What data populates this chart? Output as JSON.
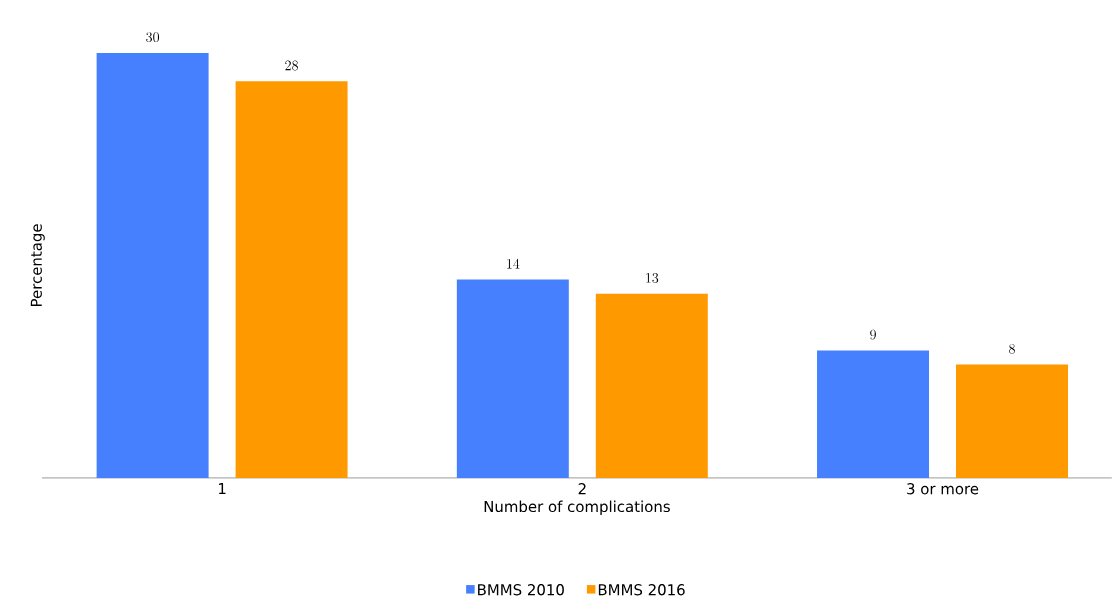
{
  "chart_data": {
    "type": "bar",
    "xlabel": "Number of complications",
    "ylabel": "Percentage",
    "categories": [
      "1",
      "2",
      "3 or more"
    ],
    "series": [
      {
        "name": "BMMS 2010",
        "color": "#4680ff",
        "values": [
          30,
          14,
          9
        ]
      },
      {
        "name": "BMMS 2016",
        "color": "#ff9900",
        "values": [
          28,
          13,
          8
        ]
      }
    ],
    "data_labels": true,
    "legend": "bottom"
  }
}
